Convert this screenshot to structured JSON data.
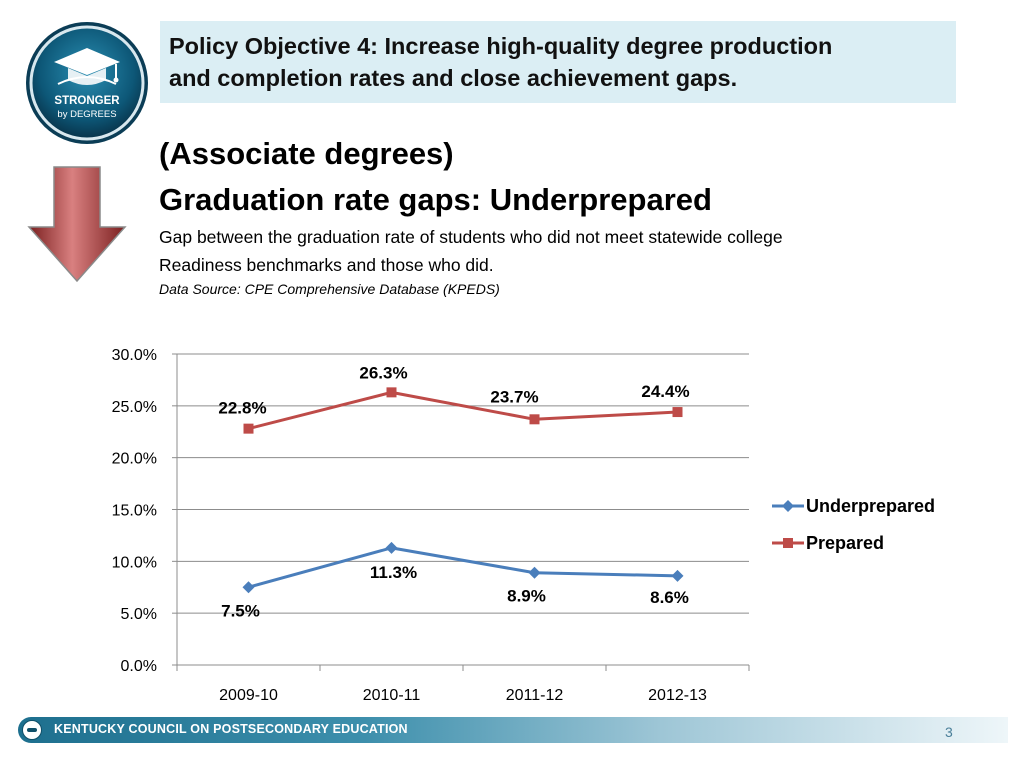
{
  "logo": {
    "line1": "STRONGER",
    "line2": "by DEGREES",
    "icon": "graduation-cap-icon"
  },
  "objective": {
    "line1": "Policy Objective 4: Increase high-quality degree production",
    "line2": "and completion rates and close achievement gaps."
  },
  "heading": {
    "line1": "(Associate degrees)",
    "line2": "Graduation rate gaps:  Underprepared",
    "description_line1": "Gap between the graduation rate of students who did not meet statewide college",
    "description_line2": "Readiness benchmarks and those who did.",
    "source": "Data Source: CPE Comprehensive Database (KPEDS)"
  },
  "chart_data": {
    "type": "line",
    "categories": [
      "2009-10",
      "2010-11",
      "2011-12",
      "2012-13"
    ],
    "series": [
      {
        "name": "Underprepared",
        "values": [
          7.5,
          11.3,
          8.9,
          8.6
        ],
        "labels": [
          "7.5%",
          "11.3%",
          "8.9%",
          "8.6%"
        ],
        "color": "#4a7ebb",
        "marker": "diamond"
      },
      {
        "name": "Prepared",
        "values": [
          22.8,
          26.3,
          23.7,
          24.4
        ],
        "labels": [
          "22.8%",
          "26.3%",
          "23.7%",
          "24.4%"
        ],
        "color": "#be4b48",
        "marker": "square"
      }
    ],
    "ylim": [
      0,
      30
    ],
    "yticks": [
      0,
      5,
      10,
      15,
      20,
      25,
      30
    ],
    "ytick_labels": [
      "0.0%",
      "5.0%",
      "10.0%",
      "15.0%",
      "20.0%",
      "25.0%",
      "30.0%"
    ],
    "grid": true,
    "legend_position": "right"
  },
  "footer": {
    "organization": "KENTUCKY COUNCIL ON POSTSECONDARY EDUCATION",
    "page_number": "3"
  }
}
